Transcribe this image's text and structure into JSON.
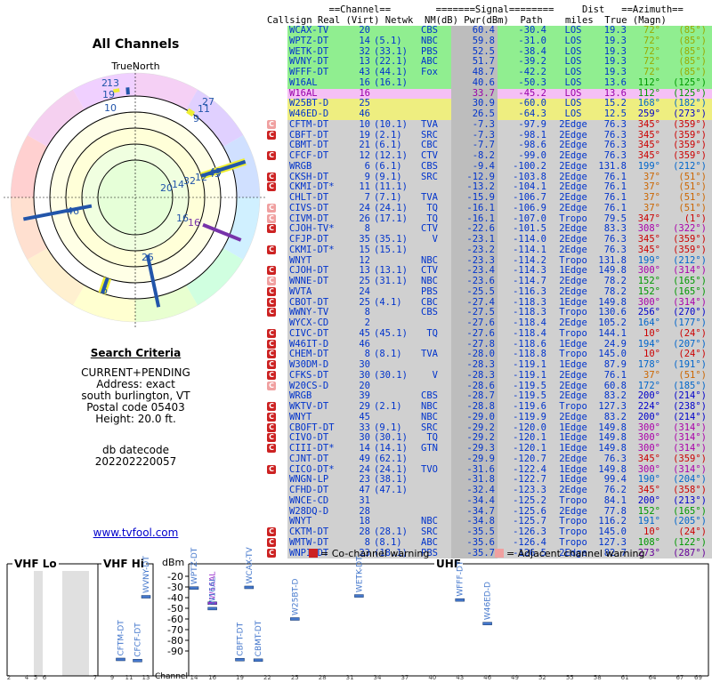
{
  "left": {
    "title": "All Channels",
    "north_label": "TrueNorth",
    "criteria_title": "Search Criteria",
    "criteria": [
      "CURRENT+PENDING",
      "Address: exact",
      "south burlington, VT",
      "Postal code 05403",
      "Height: 20.0 ft."
    ],
    "datecode_label": "db datecode",
    "datecode": "202202220057",
    "link": "www.tvfool.com"
  },
  "polar_labels": [
    {
      "t": "2",
      "az": 350
    },
    {
      "t": "13",
      "az": 355
    },
    {
      "t": "19",
      "az": 358
    },
    {
      "t": "10",
      "az": 356
    },
    {
      "t": "27",
      "az": 32
    },
    {
      "t": "11",
      "az": 35
    },
    {
      "t": "9",
      "az": 30
    },
    {
      "t": "20",
      "az": 84
    },
    {
      "t": "14",
      "az": 80
    },
    {
      "t": "32",
      "az": 76
    },
    {
      "t": "12",
      "az": 72
    },
    {
      "t": "43",
      "az": 70
    },
    {
      "t": "43",
      "az": 66
    },
    {
      "t": "46",
      "az": 259
    },
    {
      "t": "16",
      "az": 112
    },
    {
      "t": "16",
      "az": 112
    },
    {
      "t": "25",
      "az": 168
    },
    {
      "t": "6",
      "az": 199
    }
  ],
  "table_header": {
    "line1": "           ==Channel==        =======Signal========     Dist   ==Azimuth==",
    "line2": "Callsign Real (Virt) Netwk  NM(dB) Pwr(dBm)  Path    miles  True (Magn)"
  },
  "colors": {
    "green": "#90ee90",
    "yellow": "#eeee80",
    "pink": "#f5c0f5",
    "grey": "#d0d0d0",
    "nm_grey": "#bdbdbd"
  },
  "stations": [
    {
      "w": "",
      "c": "WCAX-TV",
      "r": "20",
      "v": "",
      "n": "CBS",
      "nm": "60.4",
      "p": "-30.4",
      "pa": "LOS",
      "d": "19.3",
      "t": "72°",
      "m": "(85°)",
      "bg": "green"
    },
    {
      "w": "",
      "c": "WPTZ-DT",
      "r": "14",
      "v": "(5.1)",
      "n": "NBC",
      "nm": "59.8",
      "p": "-31.0",
      "pa": "LOS",
      "d": "19.3",
      "t": "72°",
      "m": "(85°)",
      "bg": "green"
    },
    {
      "w": "",
      "c": "WETK-DT",
      "r": "32",
      "v": "(33.1)",
      "n": "PBS",
      "nm": "52.5",
      "p": "-38.4",
      "pa": "LOS",
      "d": "19.3",
      "t": "72°",
      "m": "(85°)",
      "bg": "green"
    },
    {
      "w": "",
      "c": "WVNY-DT",
      "r": "13",
      "v": "(22.1)",
      "n": "ABC",
      "nm": "51.7",
      "p": "-39.2",
      "pa": "LOS",
      "d": "19.3",
      "t": "72°",
      "m": "(85°)",
      "bg": "green"
    },
    {
      "w": "",
      "c": "WFFF-DT",
      "r": "43",
      "v": "(44.1)",
      "n": "Fox",
      "nm": "48.7",
      "p": "-42.2",
      "pa": "LOS",
      "d": "19.3",
      "t": "72°",
      "m": "(85°)",
      "bg": "green"
    },
    {
      "w": "",
      "c": "W16AL",
      "r": "16",
      "v": "(16.1)",
      "n": "",
      "nm": "40.6",
      "p": "-50.3",
      "pa": "LOS",
      "d": "13.6",
      "t": "112°",
      "m": "(125°)",
      "bg": "green"
    },
    {
      "w": "",
      "c": "W16AL",
      "r": "16",
      "v": "",
      "n": "",
      "nm": "33.7",
      "p": "-45.2",
      "pa": "LOS",
      "d": "13.6",
      "t": "112°",
      "m": "(125°)",
      "bg": "pink"
    },
    {
      "w": "",
      "c": "W25BT-D",
      "r": "25",
      "v": "",
      "n": "",
      "nm": "30.9",
      "p": "-60.0",
      "pa": "LOS",
      "d": "15.2",
      "t": "168°",
      "m": "(182°)",
      "bg": "yellow"
    },
    {
      "w": "",
      "c": "W46ED-D",
      "r": "46",
      "v": "",
      "n": "",
      "nm": "26.5",
      "p": "-64.3",
      "pa": "LOS",
      "d": "12.5",
      "t": "259°",
      "m": "(273°)",
      "bg": "yellow"
    },
    {
      "w": "adj",
      "c": "CFTM-DT",
      "r": "10",
      "v": "(10.1)",
      "n": "TVA",
      "nm": "-7.3",
      "p": "-97.9",
      "pa": "2Edge",
      "d": "76.3",
      "t": "345°",
      "m": "(359°)",
      "bg": "grey"
    },
    {
      "w": "co",
      "c": "CBFT-DT",
      "r": "19",
      "v": "(2.1)",
      "n": "SRC",
      "nm": "-7.3",
      "p": "-98.1",
      "pa": "2Edge",
      "d": "76.3",
      "t": "345°",
      "m": "(359°)",
      "bg": "grey"
    },
    {
      "w": "",
      "c": "CBMT-DT",
      "r": "21",
      "v": "(6.1)",
      "n": "CBC",
      "nm": "-7.7",
      "p": "-98.6",
      "pa": "2Edge",
      "d": "76.3",
      "t": "345°",
      "m": "(359°)",
      "bg": "grey"
    },
    {
      "w": "co",
      "c": "CFCF-DT",
      "r": "12",
      "v": "(12.1)",
      "n": "CTV",
      "nm": "-8.2",
      "p": "-99.0",
      "pa": "2Edge",
      "d": "76.3",
      "t": "345°",
      "m": "(359°)",
      "bg": "grey"
    },
    {
      "w": "",
      "c": "WRGB",
      "r": "6",
      "v": "(6.1)",
      "n": "CBS",
      "nm": "-9.4",
      "p": "-100.2",
      "pa": "2Edge",
      "d": "131.8",
      "t": "199°",
      "m": "(212°)",
      "bg": "grey"
    },
    {
      "w": "co",
      "c": "CKSH-DT",
      "r": "9",
      "v": "(9.1)",
      "n": "SRC",
      "nm": "-12.9",
      "p": "-103.8",
      "pa": "2Edge",
      "d": "76.1",
      "t": "37°",
      "m": "(51°)",
      "bg": "grey"
    },
    {
      "w": "co",
      "c": "CKMI-DT*",
      "r": "11",
      "v": "(11.1)",
      "n": "",
      "nm": "-13.2",
      "p": "-104.1",
      "pa": "2Edge",
      "d": "76.1",
      "t": "37°",
      "m": "(51°)",
      "bg": "grey"
    },
    {
      "w": "",
      "c": "CHLT-DT",
      "r": "7",
      "v": "(7.1)",
      "n": "TVA",
      "nm": "-15.9",
      "p": "-106.7",
      "pa": "2Edge",
      "d": "76.1",
      "t": "37°",
      "m": "(51°)",
      "bg": "grey"
    },
    {
      "w": "adj",
      "c": "CIVS-DT",
      "r": "24",
      "v": "(24.1)",
      "n": "TQ",
      "nm": "-16.1",
      "p": "-106.9",
      "pa": "2Edge",
      "d": "76.1",
      "t": "37°",
      "m": "(51°)",
      "bg": "grey"
    },
    {
      "w": "adj",
      "c": "CIVM-DT",
      "r": "26",
      "v": "(17.1)",
      "n": "TQ",
      "nm": "-16.1",
      "p": "-107.0",
      "pa": "Tropo",
      "d": "79.5",
      "t": "347°",
      "m": "(1°)",
      "bg": "grey"
    },
    {
      "w": "co",
      "c": "CJOH-TV*",
      "r": "8",
      "v": "",
      "n": "CTV",
      "nm": "-22.6",
      "p": "-101.5",
      "pa": "2Edge",
      "d": "83.3",
      "t": "308°",
      "m": "(322°)",
      "bg": "grey"
    },
    {
      "w": "",
      "c": "CFJP-DT",
      "r": "35",
      "v": "(35.1)",
      "n": "V",
      "nm": "-23.1",
      "p": "-114.0",
      "pa": "2Edge",
      "d": "76.3",
      "t": "345°",
      "m": "(359°)",
      "bg": "grey"
    },
    {
      "w": "co",
      "c": "CKMI-DT*",
      "r": "15",
      "v": "(15.1)",
      "n": "",
      "nm": "-23.2",
      "p": "-114.1",
      "pa": "2Edge",
      "d": "76.3",
      "t": "345°",
      "m": "(359°)",
      "bg": "grey"
    },
    {
      "w": "",
      "c": "WNYT",
      "r": "12",
      "v": "",
      "n": "NBC",
      "nm": "-23.3",
      "p": "-114.2",
      "pa": "Tropo",
      "d": "131.8",
      "t": "199°",
      "m": "(212°)",
      "bg": "grey"
    },
    {
      "w": "co",
      "c": "CJOH-DT",
      "r": "13",
      "v": "(13.1)",
      "n": "CTV",
      "nm": "-23.4",
      "p": "-114.3",
      "pa": "1Edge",
      "d": "149.8",
      "t": "300°",
      "m": "(314°)",
      "bg": "grey"
    },
    {
      "w": "adj",
      "c": "WNNE-DT",
      "r": "25",
      "v": "(31.1)",
      "n": "NBC",
      "nm": "-23.6",
      "p": "-114.7",
      "pa": "2Edge",
      "d": "78.2",
      "t": "152°",
      "m": "(165°)",
      "bg": "grey"
    },
    {
      "w": "co",
      "c": "WVTA",
      "r": "24",
      "v": "",
      "n": "PBS",
      "nm": "-25.5",
      "p": "-116.3",
      "pa": "2Edge",
      "d": "78.2",
      "t": "152°",
      "m": "(165°)",
      "bg": "grey"
    },
    {
      "w": "co",
      "c": "CBOT-DT",
      "r": "25",
      "v": "(4.1)",
      "n": "CBC",
      "nm": "-27.4",
      "p": "-118.3",
      "pa": "1Edge",
      "d": "149.8",
      "t": "300°",
      "m": "(314°)",
      "bg": "grey"
    },
    {
      "w": "co",
      "c": "WWNY-TV",
      "r": "8",
      "v": "",
      "n": "CBS",
      "nm": "-27.5",
      "p": "-118.3",
      "pa": "Tropo",
      "d": "130.6",
      "t": "256°",
      "m": "(270°)",
      "bg": "grey"
    },
    {
      "w": "",
      "c": "WYCX-CD",
      "r": "2",
      "v": "",
      "n": "",
      "nm": "-27.6",
      "p": "-118.4",
      "pa": "2Edge",
      "d": "105.2",
      "t": "164°",
      "m": "(177°)",
      "bg": "grey"
    },
    {
      "w": "co",
      "c": "CIVC-DT",
      "r": "45",
      "v": "(45.1)",
      "n": "TQ",
      "nm": "-27.6",
      "p": "-118.4",
      "pa": "Tropo",
      "d": "144.1",
      "t": "10°",
      "m": "(24°)",
      "bg": "grey"
    },
    {
      "w": "co",
      "c": "W46IT-D",
      "r": "46",
      "v": "",
      "n": "",
      "nm": "-27.8",
      "p": "-118.6",
      "pa": "1Edge",
      "d": "24.9",
      "t": "194°",
      "m": "(207°)",
      "bg": "grey"
    },
    {
      "w": "co",
      "c": "CHEM-DT",
      "r": "8",
      "v": "(8.1)",
      "n": "TVA",
      "nm": "-28.0",
      "p": "-118.8",
      "pa": "Tropo",
      "d": "145.0",
      "t": "10°",
      "m": "(24°)",
      "bg": "grey"
    },
    {
      "w": "co",
      "c": "W30DM-D",
      "r": "30",
      "v": "",
      "n": "",
      "nm": "-28.3",
      "p": "-119.1",
      "pa": "1Edge",
      "d": "87.9",
      "t": "178°",
      "m": "(191°)",
      "bg": "grey"
    },
    {
      "w": "co",
      "c": "CFKS-DT",
      "r": "30",
      "v": "(30.1)",
      "n": "V",
      "nm": "-28.3",
      "p": "-119.1",
      "pa": "2Edge",
      "d": "76.1",
      "t": "37°",
      "m": "(51°)",
      "bg": "grey"
    },
    {
      "w": "adj",
      "c": "W20CS-D",
      "r": "20",
      "v": "",
      "n": "",
      "nm": "-28.6",
      "p": "-119.5",
      "pa": "2Edge",
      "d": "60.8",
      "t": "172°",
      "m": "(185°)",
      "bg": "grey"
    },
    {
      "w": "",
      "c": "WRGB",
      "r": "39",
      "v": "",
      "n": "CBS",
      "nm": "-28.7",
      "p": "-119.5",
      "pa": "2Edge",
      "d": "83.2",
      "t": "200°",
      "m": "(214°)",
      "bg": "grey"
    },
    {
      "w": "co",
      "c": "WKTV-DT",
      "r": "29",
      "v": "(2.1)",
      "n": "NBC",
      "nm": "-28.8",
      "p": "-119.6",
      "pa": "Tropo",
      "d": "127.3",
      "t": "224°",
      "m": "(238°)",
      "bg": "grey"
    },
    {
      "w": "co",
      "c": "WNYT",
      "r": "45",
      "v": "",
      "n": "NBC",
      "nm": "-29.0",
      "p": "-119.9",
      "pa": "2Edge",
      "d": "83.2",
      "t": "200°",
      "m": "(214°)",
      "bg": "grey"
    },
    {
      "w": "co",
      "c": "CBOFT-DT",
      "r": "33",
      "v": "(9.1)",
      "n": "SRC",
      "nm": "-29.2",
      "p": "-120.0",
      "pa": "1Edge",
      "d": "149.8",
      "t": "300°",
      "m": "(314°)",
      "bg": "grey"
    },
    {
      "w": "co",
      "c": "CIVO-DT",
      "r": "30",
      "v": "(30.1)",
      "n": "TQ",
      "nm": "-29.2",
      "p": "-120.1",
      "pa": "1Edge",
      "d": "149.8",
      "t": "300°",
      "m": "(314°)",
      "bg": "grey"
    },
    {
      "w": "co",
      "c": "CIII-DT*",
      "r": "14",
      "v": "(14.1)",
      "n": "GTN",
      "nm": "-29.3",
      "p": "-120.1",
      "pa": "1Edge",
      "d": "149.8",
      "t": "300°",
      "m": "(314°)",
      "bg": "grey"
    },
    {
      "w": "",
      "c": "CJNT-DT",
      "r": "49",
      "v": "(62.1)",
      "n": "",
      "nm": "-29.9",
      "p": "-120.7",
      "pa": "2Edge",
      "d": "76.3",
      "t": "345°",
      "m": "(359°)",
      "bg": "grey"
    },
    {
      "w": "co",
      "c": "CICO-DT*",
      "r": "24",
      "v": "(24.1)",
      "n": "TVO",
      "nm": "-31.6",
      "p": "-122.4",
      "pa": "1Edge",
      "d": "149.8",
      "t": "300°",
      "m": "(314°)",
      "bg": "grey"
    },
    {
      "w": "",
      "c": "WNGN-LP",
      "r": "23",
      "v": "(38.1)",
      "n": "",
      "nm": "-31.8",
      "p": "-122.7",
      "pa": "1Edge",
      "d": "99.4",
      "t": "190°",
      "m": "(204°)",
      "bg": "grey"
    },
    {
      "w": "",
      "c": "CFHD-DT",
      "r": "47",
      "v": "(47.1)",
      "n": "",
      "nm": "-32.4",
      "p": "-123.3",
      "pa": "2Edge",
      "d": "76.2",
      "t": "345°",
      "m": "(358°)",
      "bg": "grey"
    },
    {
      "w": "",
      "c": "WNCE-CD",
      "r": "31",
      "v": "",
      "n": "",
      "nm": "-34.4",
      "p": "-125.2",
      "pa": "Tropo",
      "d": "84.1",
      "t": "200°",
      "m": "(213°)",
      "bg": "grey"
    },
    {
      "w": "",
      "c": "W28DQ-D",
      "r": "28",
      "v": "",
      "n": "",
      "nm": "-34.7",
      "p": "-125.6",
      "pa": "2Edge",
      "d": "77.8",
      "t": "152°",
      "m": "(165°)",
      "bg": "grey"
    },
    {
      "w": "",
      "c": "WNYT",
      "r": "18",
      "v": "",
      "n": "NBC",
      "nm": "-34.8",
      "p": "-125.7",
      "pa": "Tropo",
      "d": "116.2",
      "t": "191°",
      "m": "(205°)",
      "bg": "grey"
    },
    {
      "w": "co",
      "c": "CKTM-DT",
      "r": "28",
      "v": "(28.1)",
      "n": "SRC",
      "nm": "-35.5",
      "p": "-126.3",
      "pa": "Tropo",
      "d": "145.0",
      "t": "10°",
      "m": "(24°)",
      "bg": "grey"
    },
    {
      "w": "co",
      "c": "WMTW-DT",
      "r": "8",
      "v": "(8.1)",
      "n": "ABC",
      "nm": "-35.6",
      "p": "-126.4",
      "pa": "Tropo",
      "d": "127.3",
      "t": "108°",
      "m": "(122°)",
      "bg": "grey"
    },
    {
      "w": "co",
      "c": "WNPI-DT",
      "r": "23",
      "v": "(18.1)",
      "n": "PBS",
      "nm": "-35.7",
      "p": "-126.5",
      "pa": "2Edge",
      "d": "82.7",
      "t": "273°",
      "m": "(287°)",
      "bg": "grey"
    }
  ],
  "spectrum": {
    "legend_co": "= Co-channel warning",
    "legend_adj": "= Adjacent channel warning",
    "vhf_lo": "VHF Lo",
    "vhf_hi": "VHF Hi",
    "uhf": "UHF",
    "unit": "dBm",
    "channel_label": "Channel",
    "y_ticks": [
      -20,
      -30,
      -40,
      -50,
      -60,
      -70,
      -80,
      -90
    ],
    "lo_channels": [
      "2",
      "4",
      "5",
      "6"
    ],
    "hi_channels": [
      "7",
      "9",
      "11",
      "13"
    ],
    "uhf_channels": [
      "14",
      "16",
      "19",
      "22",
      "25",
      "28",
      "31",
      "34",
      "37",
      "40",
      "43",
      "46",
      "49",
      "52",
      "55",
      "58",
      "61",
      "64",
      "67",
      "69"
    ],
    "bars": [
      {
        "label": "WVNY-DT",
        "ch": 13,
        "dbm": -39.2,
        "color": "#4477cc"
      },
      {
        "label": "CFTM-DT",
        "ch": 10,
        "dbm": -97.9,
        "color": "#4477cc"
      },
      {
        "label": "CFCF-DT",
        "ch": 12,
        "dbm": -99.0,
        "color": "#4477cc"
      },
      {
        "label": "WPTZ-DT",
        "ch": 14,
        "dbm": -31.0,
        "color": "#4477cc"
      },
      {
        "label": "W16AL",
        "ch": 16,
        "dbm": -45.2,
        "color": "#9933cc"
      },
      {
        "label": "W16AL",
        "ch": 16,
        "dbm": -50.3,
        "color": "#4477cc"
      },
      {
        "label": "CBFT-DT",
        "ch": 19,
        "dbm": -98.1,
        "color": "#4477cc"
      },
      {
        "label": "WCAX-TV",
        "ch": 20,
        "dbm": -30.4,
        "color": "#4477cc"
      },
      {
        "label": "CBMT-DT",
        "ch": 21,
        "dbm": -98.6,
        "color": "#4477cc"
      },
      {
        "label": "W25BT-D",
        "ch": 25,
        "dbm": -60.0,
        "color": "#4477cc"
      },
      {
        "label": "WETK-DT",
        "ch": 32,
        "dbm": -38.4,
        "color": "#4477cc"
      },
      {
        "label": "WFFF-DT",
        "ch": 43,
        "dbm": -42.2,
        "color": "#4477cc"
      },
      {
        "label": "W46ED-D",
        "ch": 46,
        "dbm": -64.3,
        "color": "#4477cc"
      }
    ]
  }
}
